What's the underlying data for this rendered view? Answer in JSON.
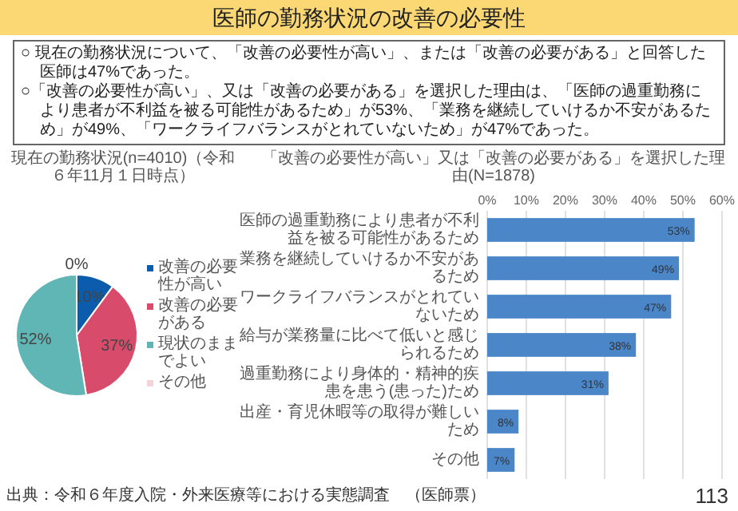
{
  "chart_data": [
    {
      "type": "pie",
      "title": "現在の勤務状況(n=4010)（令和６年11月１日時点）",
      "annotations": [
        "医師の勤務状況の改善の必要性",
        "○ 現在の勤務状況について、「改善の必要性が高い」、または「改善の必要がある」と回答した医師は47%であった。",
        "○「改善の必要性が高い」、又は「改善の必要がある」を選択した理由は、「医師の過重勤務により患者が不利益を被る可能性があるため」が53%、「業務を継続していけるか不安があるため」が49%、「ワークライフバランスがとれていないため」が47%であった。"
      ],
      "categories": [
        "改善の必要性が高い",
        "改善の必要がある",
        "現状のままでよい",
        "その他"
      ],
      "values": [
        10,
        37,
        52,
        0
      ],
      "colors": [
        "#0b5cad",
        "#d94b6b",
        "#5fb6b4",
        "#f6d3db"
      ],
      "value_labels": [
        "10%",
        "37%",
        "52%",
        "0%"
      ],
      "legend": "right"
    },
    {
      "type": "bar",
      "orientation": "horizontal",
      "title": "「改善の必要性が高い」又は「改善の必要がある」を選択した理由(N=1878)",
      "annotations": [
        "出典：令和６年度入院・外来医療等における実態調査　（医師票）",
        "113"
      ],
      "categories": [
        "医師の過重勤務により患者が不利益を被る可能性があるため",
        "業務を継続していけるか不安があるため",
        "ワークライフバランスがとれていないため",
        "給与が業務量に比べて低いと感じられるため",
        "過重勤務により身体的・精神的疾患を患う(患った)ため",
        "出産・育児休暇等の取得が難しいため",
        "その他"
      ],
      "values": [
        53,
        49,
        47,
        38,
        31,
        8,
        7
      ],
      "color": "#4a86c8",
      "value_labels": [
        "53%",
        "49%",
        "47%",
        "38%",
        "31%",
        "8%",
        "7%"
      ],
      "xlim": [
        0,
        60
      ],
      "xticks": [
        {
          "value": 0,
          "label": "0%"
        },
        {
          "value": 10,
          "label": "10%"
        },
        {
          "value": 20,
          "label": "20%"
        },
        {
          "value": 30,
          "label": "30%"
        },
        {
          "value": 40,
          "label": "40%"
        },
        {
          "value": 50,
          "label": "50%"
        },
        {
          "value": 60,
          "label": "60%"
        }
      ],
      "grid": "x"
    }
  ]
}
